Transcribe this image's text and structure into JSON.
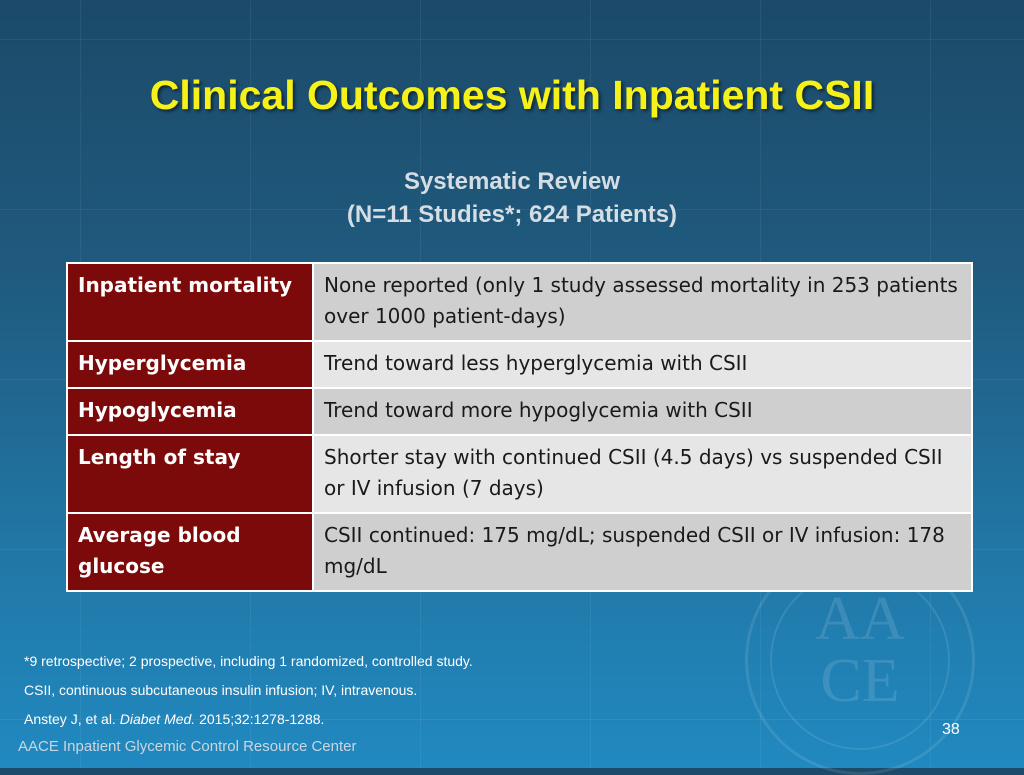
{
  "title": "Clinical Outcomes with Inpatient CSII",
  "subtitle": {
    "line1": "Systematic Review",
    "line2": "(N=11 Studies*; 624 Patients)"
  },
  "table": {
    "rows": [
      {
        "label": "Inpatient mortality",
        "value": "None reported (only 1 study assessed mortality in 253 patients over 1000 patient-days)"
      },
      {
        "label": "Hyperglycemia",
        "value": "Trend toward less hyperglycemia with CSII"
      },
      {
        "label": "Hypoglycemia",
        "value": "Trend toward more hypoglycemia with CSII"
      },
      {
        "label": "Length of stay",
        "value": "Shorter stay with continued CSII (4.5 days) vs suspended CSII or IV infusion (7 days)"
      },
      {
        "label": "Average blood glucose",
        "value": "CSII continued: 175 mg/dL; suspended CSII or IV infusion: 178 mg/dL"
      }
    ]
  },
  "footnotes": {
    "studies": "*9 retrospective; 2 prospective, including 1 randomized, controlled study.",
    "abbreviations": "CSII, continuous subcutaneous insulin infusion; IV, intravenous.",
    "citation_authors": "Anstey J, et al. ",
    "citation_journal": "Diabet Med.",
    "citation_details": " 2015;32:1278-1288."
  },
  "brand": "AACE Inpatient Glycemic Control Resource Center",
  "watermark": {
    "text": "AACE",
    "icon": "aace-seal-icon"
  },
  "page_number": "38",
  "colors": {
    "title": "#f7f11a",
    "label_bg": "#7c0a0a",
    "value_bg_odd": "#cfcfcf",
    "value_bg_even": "#e6e6e6",
    "background_top": "#1c4a69",
    "background_bottom": "#2189c0"
  }
}
